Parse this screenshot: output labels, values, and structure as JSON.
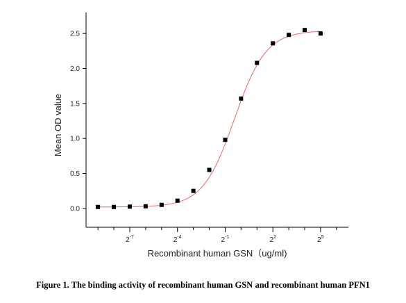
{
  "chart_data": {
    "type": "scatter",
    "xlabel": "Recombinant human  GSN（ug/ml)",
    "ylabel": "Mean OD value",
    "x_scale": "log2",
    "xlim": [
      -9.75,
      6.75
    ],
    "ylim": [
      -0.27,
      2.8
    ],
    "x_ticks": [
      {
        "exp": -7,
        "base": "2",
        "sup": "-7"
      },
      {
        "exp": -4,
        "base": "2",
        "sup": "-4"
      },
      {
        "exp": -1,
        "base": "2",
        "sup": "-1"
      },
      {
        "exp": 2,
        "base": "2",
        "sup": "2"
      },
      {
        "exp": 5,
        "base": "2",
        "sup": "5"
      }
    ],
    "x_minor_ticks": [
      -9,
      -8,
      -6,
      -5,
      -3,
      -2,
      0,
      1,
      3,
      4,
      6
    ],
    "y_ticks": [
      {
        "value": 0.0,
        "label": "0.0"
      },
      {
        "value": 0.5,
        "label": "0.5"
      },
      {
        "value": 1.0,
        "label": "1.0"
      },
      {
        "value": 1.5,
        "label": "1.5"
      },
      {
        "value": 2.0,
        "label": "2.0"
      },
      {
        "value": 2.5,
        "label": "2.5"
      }
    ],
    "points": [
      {
        "x": 0.00195,
        "y": 0.02
      },
      {
        "x": 0.0039,
        "y": 0.02
      },
      {
        "x": 0.0078,
        "y": 0.025
      },
      {
        "x": 0.0156,
        "y": 0.03
      },
      {
        "x": 0.03125,
        "y": 0.05
      },
      {
        "x": 0.0625,
        "y": 0.11
      },
      {
        "x": 0.125,
        "y": 0.25
      },
      {
        "x": 0.25,
        "y": 0.55
      },
      {
        "x": 0.5,
        "y": 0.98
      },
      {
        "x": 1,
        "y": 1.57
      },
      {
        "x": 2,
        "y": 2.08
      },
      {
        "x": 4,
        "y": 2.36
      },
      {
        "x": 8,
        "y": 2.48
      },
      {
        "x": 16,
        "y": 2.55
      },
      {
        "x": 32,
        "y": 2.5
      }
    ],
    "fit": {
      "model": "4PL",
      "bottom": 0.02,
      "top": 2.54,
      "ec50": 0.75,
      "hill": 1.45
    },
    "marker_color": "#000000",
    "fit_color": "#e26a6a"
  },
  "caption": "Figure 1. The binding activity of recombinant human GSN and recombinant human PFN1"
}
